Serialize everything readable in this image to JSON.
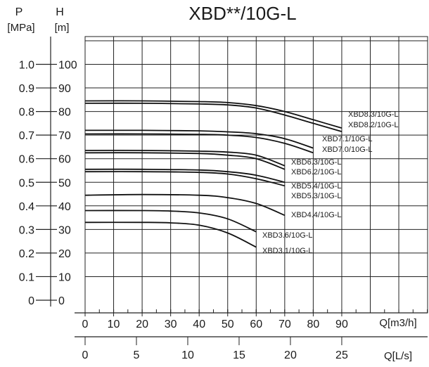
{
  "chart_data": {
    "type": "line",
    "title": "XBD**/10G-L",
    "pressure_axis": {
      "label_top": "P",
      "label_unit": "[MPa]",
      "ticks": [
        "0",
        "0.1",
        "0.2",
        "0.3",
        "0.4",
        "0.5",
        "0.6",
        "0.7",
        "0.8",
        "0.9",
        "1.0"
      ]
    },
    "head_axis": {
      "label_top": "H",
      "label_unit": "[m]",
      "range": [
        0,
        100
      ],
      "ticks": [
        "0",
        "10",
        "20",
        "30",
        "40",
        "50",
        "60",
        "70",
        "80",
        "90",
        "100"
      ]
    },
    "flow_axis_m3h": {
      "label": "Q[m3/h]",
      "range": [
        0,
        120
      ],
      "ticks": [
        "0",
        "10",
        "20",
        "30",
        "40",
        "50",
        "60",
        "70",
        "80",
        "90"
      ]
    },
    "flow_axis_ls": {
      "label": "Q[L/s]",
      "ticks": [
        "0",
        "5",
        "10",
        "15",
        "20",
        "25"
      ]
    },
    "grid": true,
    "series": [
      {
        "name": "XBD8.3/10G-L",
        "points": [
          [
            0,
            84.5
          ],
          [
            20,
            84.5
          ],
          [
            40,
            84.2
          ],
          [
            50,
            83.8
          ],
          [
            60,
            82.5
          ],
          [
            70,
            80.0
          ],
          [
            80,
            76.5
          ],
          [
            90,
            73.0
          ]
        ]
      },
      {
        "name": "XBD8.2/10G-L",
        "points": [
          [
            0,
            83.5
          ],
          [
            20,
            83.5
          ],
          [
            40,
            83.2
          ],
          [
            50,
            82.8
          ],
          [
            60,
            81.5
          ],
          [
            70,
            78.5
          ],
          [
            80,
            75.0
          ],
          [
            90,
            71.5
          ]
        ]
      },
      {
        "name": "XBD7.1/10G-L",
        "points": [
          [
            0,
            72.0
          ],
          [
            20,
            72.0
          ],
          [
            40,
            71.8
          ],
          [
            50,
            71.4
          ],
          [
            60,
            70.6
          ],
          [
            70,
            68.5
          ],
          [
            80,
            64.5
          ]
        ]
      },
      {
        "name": "XBD7.0/10G-L",
        "points": [
          [
            0,
            70.5
          ],
          [
            20,
            70.5
          ],
          [
            40,
            70.3
          ],
          [
            50,
            70.0
          ],
          [
            60,
            69.0
          ],
          [
            70,
            66.5
          ],
          [
            80,
            62.5
          ]
        ]
      },
      {
        "name": "XBD6.3/10G-L",
        "points": [
          [
            0,
            63.5
          ],
          [
            20,
            63.5
          ],
          [
            40,
            63.2
          ],
          [
            50,
            62.8
          ],
          [
            60,
            61.5
          ],
          [
            70,
            57.0
          ]
        ]
      },
      {
        "name": "XBD6.2/10G-L",
        "points": [
          [
            0,
            62.5
          ],
          [
            20,
            62.5
          ],
          [
            40,
            62.2
          ],
          [
            50,
            61.5
          ],
          [
            60,
            60.0
          ],
          [
            70,
            55.5
          ]
        ]
      },
      {
        "name": "XBD5.4/10G-L",
        "points": [
          [
            0,
            55.5
          ],
          [
            20,
            55.5
          ],
          [
            40,
            55.2
          ],
          [
            50,
            54.5
          ],
          [
            60,
            53.0
          ],
          [
            70,
            50.0
          ]
        ]
      },
      {
        "name": "XBD5.3/10G-L",
        "points": [
          [
            0,
            54.5
          ],
          [
            20,
            54.5
          ],
          [
            40,
            54.2
          ],
          [
            50,
            53.5
          ],
          [
            60,
            51.5
          ],
          [
            70,
            48.5
          ]
        ]
      },
      {
        "name": "XBD4.4/10G-L",
        "points": [
          [
            0,
            44.5
          ],
          [
            20,
            44.8
          ],
          [
            40,
            44.5
          ],
          [
            50,
            43.5
          ],
          [
            60,
            41.0
          ],
          [
            70,
            36.0
          ]
        ]
      },
      {
        "name": "XBD3.6/10G-L",
        "points": [
          [
            0,
            38.0
          ],
          [
            20,
            38.0
          ],
          [
            30,
            37.8
          ],
          [
            40,
            37.0
          ],
          [
            50,
            34.5
          ],
          [
            60,
            29.0
          ]
        ]
      },
      {
        "name": "XBD3.1/10G-L",
        "points": [
          [
            0,
            33.0
          ],
          [
            20,
            33.0
          ],
          [
            30,
            32.8
          ],
          [
            40,
            31.8
          ],
          [
            50,
            28.5
          ],
          [
            60,
            22.5
          ]
        ]
      }
    ],
    "legend_placement": "inline"
  }
}
